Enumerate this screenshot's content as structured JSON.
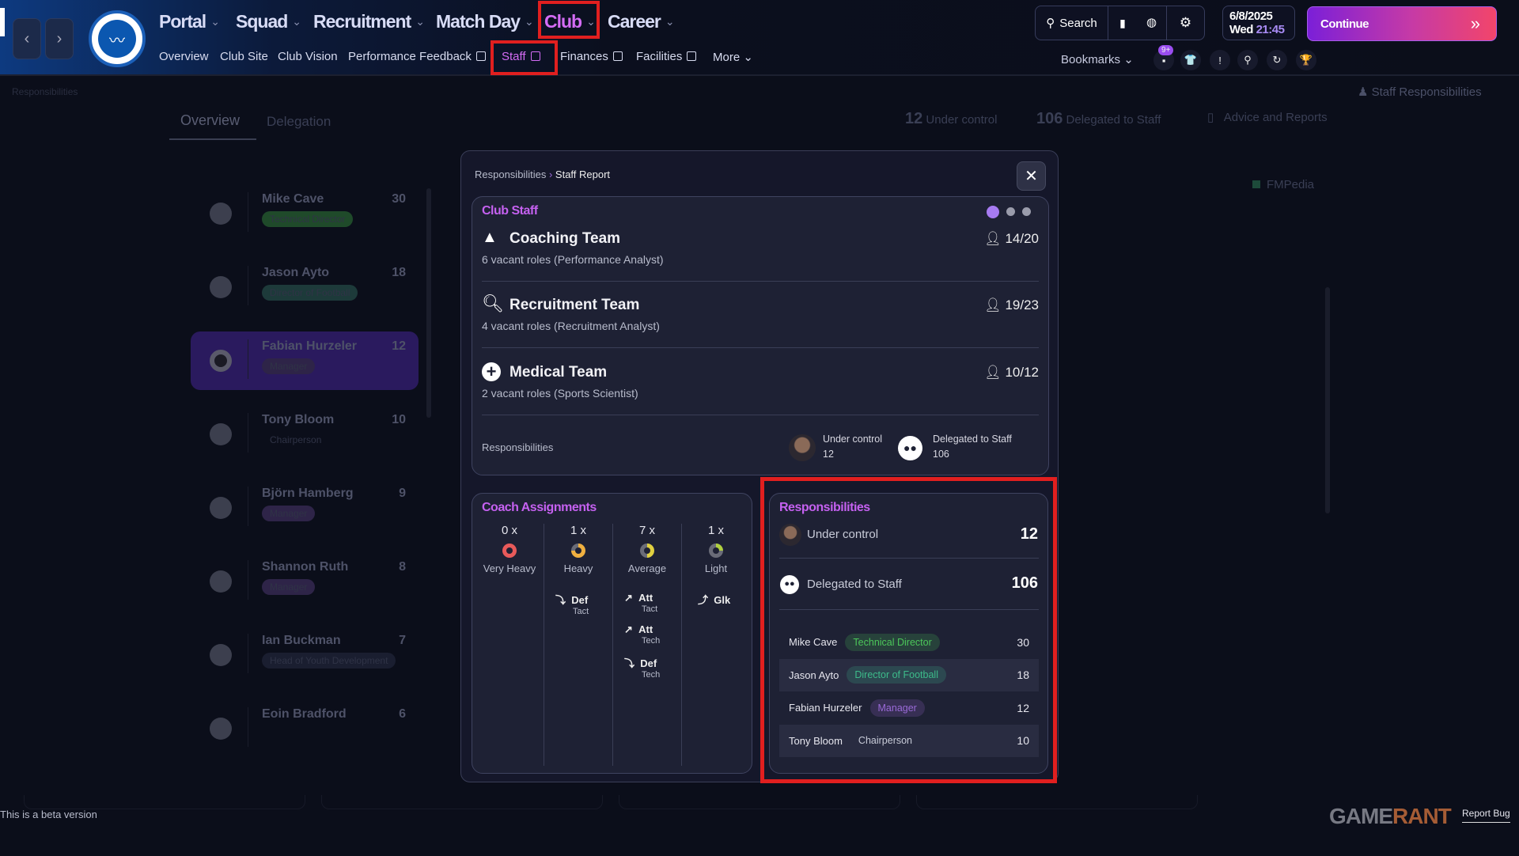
{
  "topnav": {
    "main": [
      {
        "label": "Portal"
      },
      {
        "label": "Squad"
      },
      {
        "label": "Recruitment"
      },
      {
        "label": "Match Day"
      },
      {
        "label": "Club",
        "active": true
      },
      {
        "label": "Career"
      }
    ],
    "sub": [
      {
        "label": "Overview"
      },
      {
        "label": "Club Site"
      },
      {
        "label": "Club Vision"
      },
      {
        "label": "Performance Feedback",
        "external": true
      },
      {
        "label": "Staff",
        "external": true,
        "active": true
      },
      {
        "label": "Finances",
        "external": true
      },
      {
        "label": "Facilities",
        "external": true
      },
      {
        "label": "More"
      }
    ],
    "search_label": "Search",
    "date": "6/8/2025",
    "day": "Wed",
    "time": "21:45",
    "continue_label": "Continue",
    "bookmarks_label": "Bookmarks",
    "notification_badge": "9+",
    "accent": "#c561f0",
    "highlight_color": "#e11f1f"
  },
  "background": {
    "page_label": "Responsibilities",
    "staff_responsibilities": "Staff Responsibilities",
    "tabs": [
      {
        "label": "Overview",
        "active": true
      },
      {
        "label": "Delegation"
      }
    ],
    "stats": {
      "under_control_value": "12",
      "under_control_label": "Under control",
      "delegated_value": "106",
      "delegated_label": "Delegated to Staff",
      "advice_label": "Advice and Reports"
    },
    "fmpedia": "FMPedia",
    "staff_list": [
      {
        "name": "Mike Cave",
        "role": "Technical Director",
        "count": "30"
      },
      {
        "name": "Jason Ayto",
        "role": "Director of Football",
        "count": "18"
      },
      {
        "name": "Fabian Hurzeler",
        "role": "Manager",
        "count": "12",
        "selected": true
      },
      {
        "name": "Tony Bloom",
        "role": "Chairperson",
        "count": "10"
      },
      {
        "name": "Björn Hamberg",
        "role": "Manager",
        "count": "9"
      },
      {
        "name": "Shannon Ruth",
        "role": "Manager",
        "count": "8"
      },
      {
        "name": "Ian Buckman",
        "role": "Head of Youth Development",
        "count": "7"
      },
      {
        "name": "Eoin Bradford",
        "role": "",
        "count": "6"
      }
    ]
  },
  "modal": {
    "breadcrumb": [
      "Responsibilities",
      "Staff Report"
    ],
    "club_staff": {
      "title": "Club Staff",
      "teams": [
        {
          "name": "Coaching Team",
          "icon": "cone-icon",
          "sub": "6 vacant roles (Performance Analyst)",
          "count": "14/20"
        },
        {
          "name": "Recruitment Team",
          "icon": "magnifier-icon",
          "sub": "4 vacant roles (Recruitment Analyst)",
          "count": "19/23"
        },
        {
          "name": "Medical Team",
          "icon": "medical-plus-icon",
          "sub": "2 vacant roles (Sports Scientist)",
          "count": "10/12"
        }
      ],
      "resp_label": "Responsibilities",
      "under_control_label": "Under control",
      "under_control_value": "12",
      "delegated_label": "Delegated to Staff",
      "delegated_value": "106"
    },
    "coach_assignments": {
      "title": "Coach Assignments",
      "columns": [
        {
          "count": "0 x",
          "label": "Very Heavy",
          "color": "#e85a5a",
          "entries": []
        },
        {
          "count": "1 x",
          "label": "Heavy",
          "color": "#f0b040",
          "entries": [
            {
              "main": "Def",
              "sub": "Tact"
            }
          ]
        },
        {
          "count": "7 x",
          "label": "Average",
          "color": "#e0d040",
          "entries": [
            {
              "main": "Att",
              "sub": "Tact"
            },
            {
              "main": "Att",
              "sub": "Tech"
            },
            {
              "main": "Def",
              "sub": "Tech"
            }
          ]
        },
        {
          "count": "1 x",
          "label": "Light",
          "color": "#b0d040",
          "entries": [
            {
              "main": "Glk",
              "sub": ""
            }
          ]
        }
      ]
    },
    "responsibilities": {
      "title": "Responsibilities",
      "under_control_label": "Under control",
      "under_control_value": "12",
      "delegated_label": "Delegated to Staff",
      "delegated_value": "106",
      "rows": [
        {
          "name": "Mike Cave",
          "role": "Technical Director",
          "count": "30",
          "role_color": "#4cc75a"
        },
        {
          "name": "Jason Ayto",
          "role": "Director of Football",
          "count": "18",
          "role_color": "#3dbb8a"
        },
        {
          "name": "Fabian Hurzeler",
          "role": "Manager",
          "count": "12",
          "role_color": "#9a6ad8"
        },
        {
          "name": "Tony Bloom",
          "role": "Chairperson",
          "count": "10",
          "role_color": ""
        }
      ]
    }
  },
  "footer": {
    "beta": "This is a beta version",
    "report_bug": "Report Bug",
    "watermark": "GAMERANT"
  }
}
